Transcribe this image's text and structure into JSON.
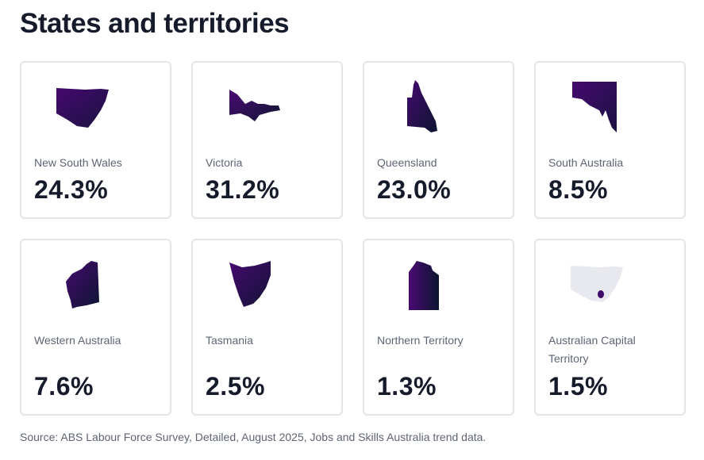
{
  "page": {
    "title": "States and territories",
    "source": "Source: ABS Labour Force Survey, Detailed, August 2025, Jobs and Skills Australia trend data."
  },
  "colors": {
    "map_fill_start": "#3e0a6b",
    "map_fill_end": "#0d1630",
    "map_muted": "#e8e9ee",
    "card_border": "#e3e5ea"
  },
  "cards": [
    {
      "label": "New South Wales",
      "value": "24.3%",
      "icon": "nsw-map-icon"
    },
    {
      "label": "Victoria",
      "value": "31.2%",
      "icon": "victoria-map-icon"
    },
    {
      "label": "Queensland",
      "value": "23.0%",
      "icon": "queensland-map-icon"
    },
    {
      "label": "South Australia",
      "value": "8.5%",
      "icon": "south-australia-map-icon"
    },
    {
      "label": "Western Australia",
      "value": "7.6%",
      "icon": "western-australia-map-icon"
    },
    {
      "label": "Tasmania",
      "value": "2.5%",
      "icon": "tasmania-map-icon"
    },
    {
      "label": "Northern Territory",
      "value": "1.3%",
      "icon": "northern-territory-map-icon"
    },
    {
      "label": "Australian Capital Territory",
      "value": "1.5%",
      "icon": "act-map-icon"
    }
  ]
}
